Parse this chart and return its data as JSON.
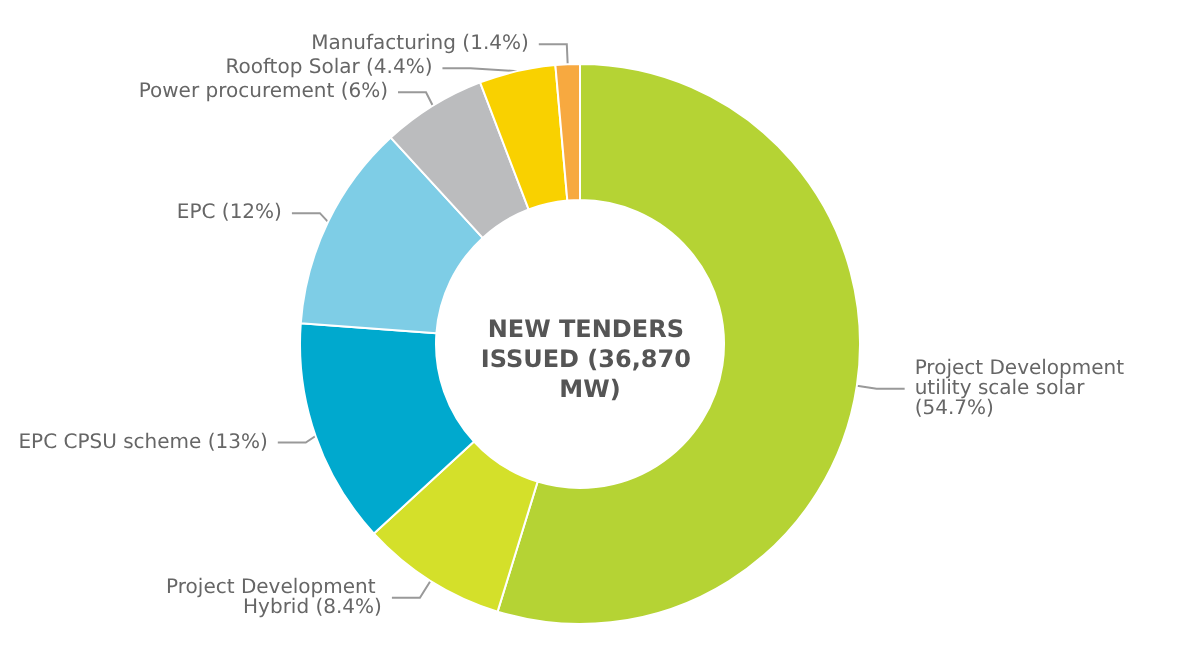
{
  "chart_data": {
    "type": "donut",
    "title": "NEW TENDERS ISSUED (36,870 MW)",
    "categories": [
      "Project Development utility scale solar",
      "Project Development Hybrid",
      "EPC CPSU scheme",
      "EPC",
      "Power procurement",
      "Rooftop Solar",
      "Manufacturing"
    ],
    "values": [
      54.7,
      8.4,
      13,
      12,
      6,
      4.4,
      1.4
    ],
    "value_labels": [
      "(54.7%)",
      "(8.4%)",
      "(13%)",
      "(12%)",
      "(6%)",
      "(4.4%)",
      "(1.4%)"
    ],
    "colors": [
      "#b5d334",
      "#d4e02a",
      "#00a9ce",
      "#7ecde6",
      "#bbbcbe",
      "#f9d100",
      "#f7a940"
    ],
    "legend": false
  }
}
